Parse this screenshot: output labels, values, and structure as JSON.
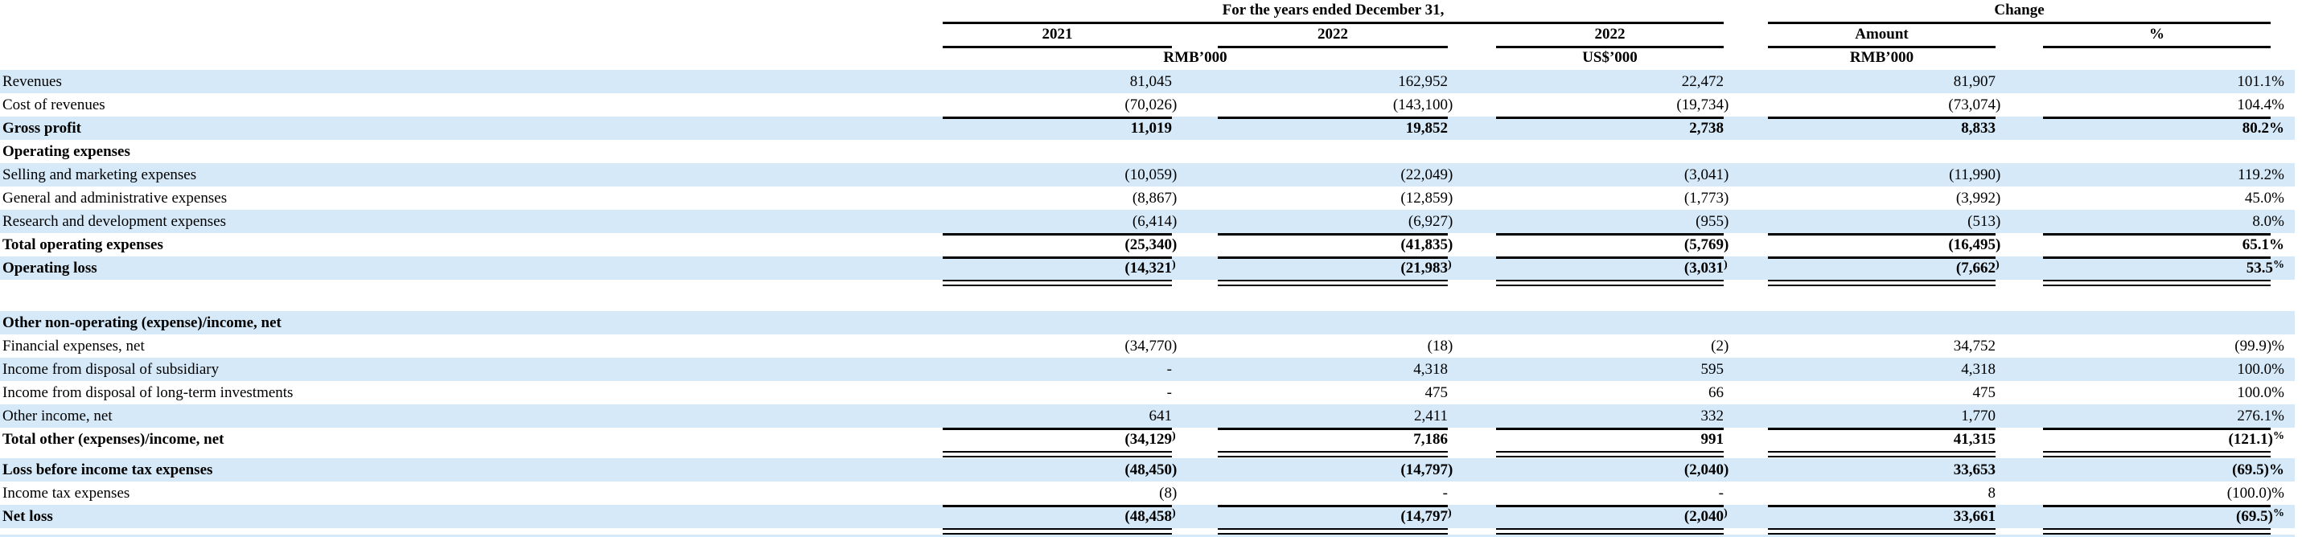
{
  "table": {
    "header": {
      "period_group_label": "For the years ended December 31,",
      "change_group_label": "Change",
      "columns": [
        "2021",
        "2022",
        "2022",
        "Amount",
        "%"
      ],
      "units": [
        "RMB’000",
        "US$’000",
        "RMB’000"
      ]
    },
    "rows": [
      {
        "label": "Revenues",
        "values": [
          "81,045",
          "162,952",
          "22,472",
          "81,907",
          "101.1%"
        ]
      },
      {
        "label": "Cost of revenues",
        "values": [
          "(70,026)",
          "(143,100)",
          "(19,734)",
          "(73,074)",
          "104.4%"
        ]
      },
      {
        "label": "Gross profit",
        "values": [
          "11,019",
          "19,852",
          "2,738",
          "8,833",
          "80.2%"
        ]
      },
      {
        "label": "Operating expenses",
        "values": [
          "",
          "",
          "",
          "",
          ""
        ]
      },
      {
        "label": "Selling and marketing expenses",
        "values": [
          "(10,059)",
          "(22,049)",
          "(3,041)",
          "(11,990)",
          "119.2%"
        ]
      },
      {
        "label": "General and administrative expenses",
        "values": [
          "(8,867)",
          "(12,859)",
          "(1,773)",
          "(3,992)",
          "45.0%"
        ]
      },
      {
        "label": "Research and development expenses",
        "values": [
          "(6,414)",
          "(6,927)",
          "(955)",
          "(513)",
          "8.0%"
        ]
      },
      {
        "label": "Total operating expenses",
        "values": [
          "(25,340)",
          "(41,835)",
          "(5,769)",
          "(16,495)",
          "65.1%"
        ]
      },
      {
        "label": "Operating loss",
        "values": [
          "(14,321)",
          "(21,983)",
          "(3,031)",
          "(7,662)",
          "53.5%"
        ]
      },
      {
        "label": "Other non-operating (expense)/income, net",
        "values": [
          "",
          "",
          "",
          "",
          ""
        ]
      },
      {
        "label": "Financial expenses, net",
        "values": [
          "(34,770)",
          "(18)",
          "(2)",
          "34,752",
          "(99.9)%"
        ]
      },
      {
        "label": "Income from disposal of subsidiary",
        "values": [
          "-",
          "4,318",
          "595",
          "4,318",
          "100.0%"
        ]
      },
      {
        "label": "Income from disposal of long-term investments",
        "values": [
          "-",
          "475",
          "66",
          "475",
          "100.0%"
        ]
      },
      {
        "label": "Other income, net",
        "values": [
          "641",
          "2,411",
          "332",
          "1,770",
          "276.1%"
        ]
      },
      {
        "label": "Total other (expenses)/income, net",
        "values": [
          "(34,129)",
          "7,186",
          "991",
          "41,315",
          "(121.1)%"
        ]
      },
      {
        "label": "Loss before income tax expenses",
        "values": [
          "(48,450)",
          "(14,797)",
          "(2,040)",
          "33,653",
          "(69.5)%"
        ]
      },
      {
        "label": "Income tax expenses",
        "values": [
          "(8)",
          "-",
          "-",
          "8",
          "(100.0)%"
        ]
      },
      {
        "label": "Net loss",
        "values": [
          "(48,458)",
          "(14,797)",
          "(2,040)",
          "33,661",
          "(69.5)%"
        ]
      }
    ]
  },
  "colors": {
    "row_band_blue": "#d6e9f8",
    "rule_black": "#000000",
    "background": "#ffffff",
    "text": "#000000"
  }
}
